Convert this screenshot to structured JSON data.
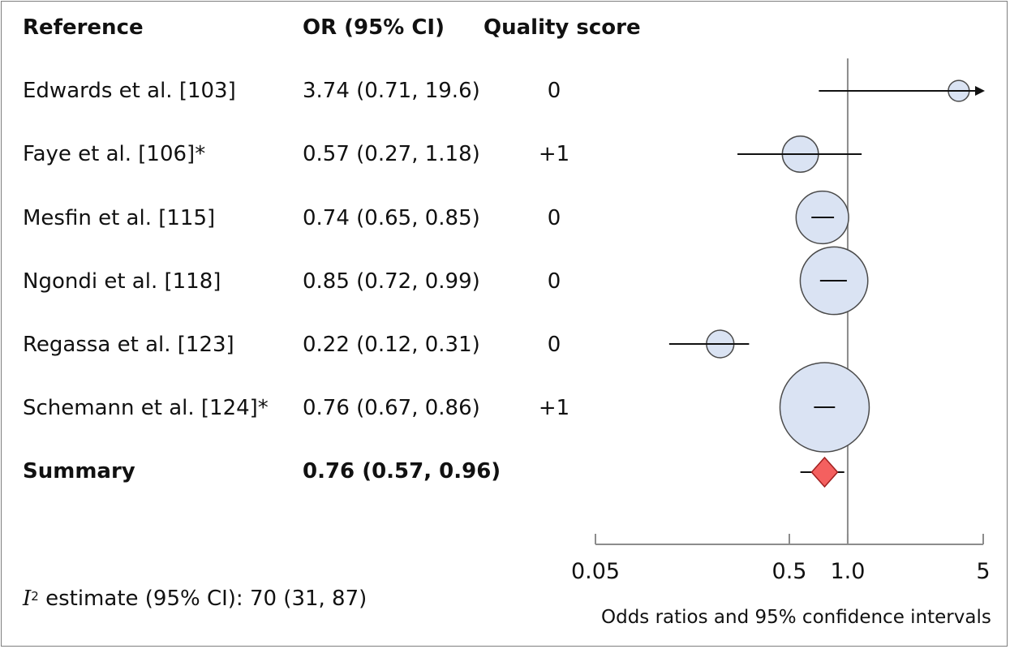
{
  "table": {
    "headers": {
      "reference": "Reference",
      "or": "OR (95% CI)",
      "quality": "Quality score"
    },
    "rows": [
      {
        "reference": "Edwards et al. [103]",
        "or": "3.74 (0.71, 19.6)",
        "quality": "0"
      },
      {
        "reference": "Faye et al. [106]*",
        "or": "0.57 (0.27, 1.18)",
        "quality": "+1"
      },
      {
        "reference": "Mesfin et al. [115]",
        "or": "0.74 (0.65, 0.85)",
        "quality": "0"
      },
      {
        "reference": "Ngondi et al.  [118]",
        "or": "0.85 (0.72, 0.99)",
        "quality": "0"
      },
      {
        "reference": "Regassa et al. [123]",
        "or": "0.22 (0.12, 0.31)",
        "quality": "0"
      },
      {
        "reference": "Schemann et al. [124]*",
        "or": "0.76 (0.67, 0.86)",
        "quality": "+1"
      }
    ],
    "summary": {
      "reference": "Summary",
      "or": "0.76 (0.57, 0.96)"
    }
  },
  "heterogeneity": {
    "symbol": "I",
    "superscript": "2",
    "text": " estimate (95% CI): 70 (31, 87)"
  },
  "chart_data": {
    "type": "forest",
    "xscale": "log",
    "xlabel": "Odds ratios and 95% confidence intervals",
    "xlim": [
      0.05,
      5
    ],
    "ticks": [
      {
        "value": 0.05,
        "label": "0.05"
      },
      {
        "value": 0.5,
        "label": "0.5"
      },
      {
        "value": 1.0,
        "label": "1.0"
      },
      {
        "value": 5,
        "label": "5"
      }
    ],
    "reference_line": 1.0,
    "studies": [
      {
        "or": 3.74,
        "lower": 0.71,
        "upper": 19.6,
        "weight": 0.02,
        "arrow_right": true
      },
      {
        "or": 0.57,
        "lower": 0.27,
        "upper": 1.18,
        "weight": 0.11
      },
      {
        "or": 0.74,
        "lower": 0.65,
        "upper": 0.85,
        "weight": 0.29
      },
      {
        "or": 0.85,
        "lower": 0.72,
        "upper": 0.99,
        "weight": 0.53
      },
      {
        "or": 0.22,
        "lower": 0.12,
        "upper": 0.31,
        "weight": 0.05
      },
      {
        "or": 0.76,
        "lower": 0.67,
        "upper": 0.86,
        "weight": 1.0
      }
    ],
    "summary": {
      "or": 0.76,
      "lower": 0.57,
      "upper": 0.96
    },
    "colors": {
      "marker_fill": "#dae3f3",
      "marker_stroke": "#4a4a4a",
      "summary_fill": "#f4605f",
      "summary_stroke": "#a02020",
      "axis": "#8c8c8c",
      "line": "#111111"
    }
  }
}
